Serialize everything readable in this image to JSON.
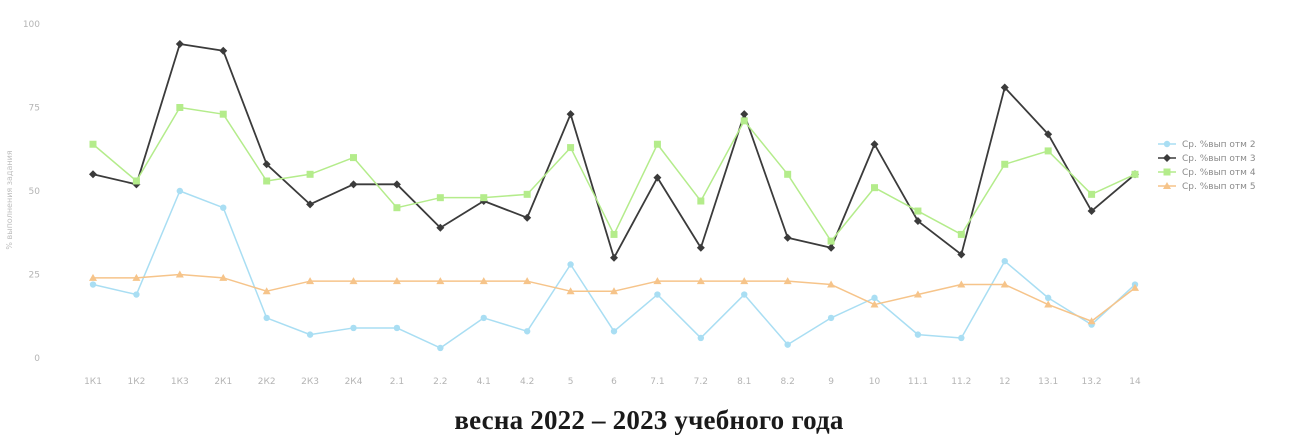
{
  "caption": "весна 2022 – 2023 учебного года",
  "chart_data": {
    "type": "line",
    "title": "",
    "xlabel": "",
    "ylabel": "% выполнения задания",
    "ylim": [
      0,
      100
    ],
    "yticks": [
      "0",
      "25",
      "50",
      "75",
      "100"
    ],
    "grid": false,
    "legend_position": "right",
    "categories": [
      "1К1",
      "1К2",
      "1К3",
      "2К1",
      "2К2",
      "2К3",
      "2К4",
      "2.1",
      "2.2",
      "4.1",
      "4.2",
      "5",
      "6",
      "7.1",
      "7.2",
      "8.1",
      "8.2",
      "9",
      "10",
      "11.1",
      "11.2",
      "12",
      "13.1",
      "13.2",
      "14"
    ],
    "series": [
      {
        "name": "Ср. %вып отм 2",
        "color": "#a9def3",
        "marker": "circle",
        "values": [
          22,
          19,
          50,
          45,
          12,
          7,
          9,
          9,
          3,
          12,
          8,
          28,
          8,
          19,
          6,
          19,
          4,
          12,
          18,
          7,
          6,
          29,
          18,
          10,
          22
        ]
      },
      {
        "name": "Ср. %вып отм 3",
        "color": "#3b3b3b",
        "marker": "diamond",
        "values": [
          55,
          52,
          94,
          92,
          58,
          46,
          52,
          52,
          39,
          47,
          42,
          73,
          30,
          54,
          33,
          73,
          36,
          33,
          64,
          41,
          31,
          81,
          67,
          44,
          55
        ]
      },
      {
        "name": "Ср. %вып отм 4",
        "color": "#b4ec8b",
        "marker": "square",
        "values": [
          64,
          53,
          75,
          73,
          53,
          55,
          60,
          45,
          48,
          48,
          49,
          63,
          37,
          64,
          47,
          71,
          55,
          35,
          51,
          44,
          37,
          58,
          62,
          49,
          55
        ]
      },
      {
        "name": "Ср. %вып отм 5",
        "color": "#f6c48a",
        "marker": "triangle",
        "values": [
          24,
          24,
          25,
          24,
          20,
          23,
          23,
          23,
          23,
          23,
          23,
          20,
          20,
          23,
          23,
          23,
          23,
          22,
          16,
          19,
          22,
          22,
          16,
          11,
          21
        ]
      }
    ]
  }
}
